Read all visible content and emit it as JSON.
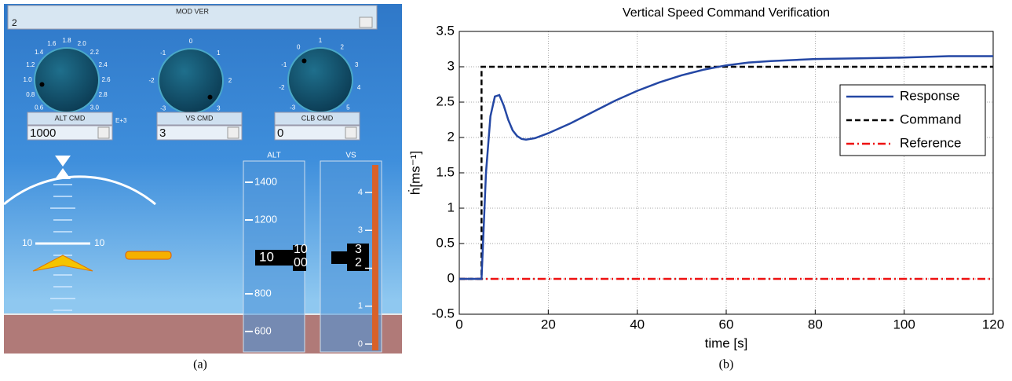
{
  "panel": {
    "mod_ver": {
      "label": "MOD VER",
      "value": "2"
    },
    "knobs": [
      {
        "label": "ALT CMD",
        "value": "1000",
        "scale": [
          "0.6",
          "0.8",
          "1.0",
          "1.2",
          "1.4",
          "1.6",
          "1.8",
          "2.0",
          "2.2",
          "2.4",
          "2.6",
          "2.8",
          "3.0"
        ],
        "exponent": "E+3"
      },
      {
        "label": "VS CMD",
        "value": "3",
        "scale": [
          "-3",
          "-2",
          "-1",
          "0",
          "1",
          "2",
          "3"
        ]
      },
      {
        "label": "CLB CMD",
        "value": "0",
        "scale": [
          "-3",
          "-2",
          "-1",
          "0",
          "1",
          "2",
          "3",
          "4",
          "5"
        ]
      }
    ],
    "attitude": {
      "pitch_left": "10",
      "pitch_right": "10"
    },
    "alt_tape": {
      "title": "ALT",
      "labels": [
        "1400",
        "1200",
        "800",
        "600"
      ],
      "readout": "10",
      "drum": [
        "10",
        "00"
      ]
    },
    "vs_tape": {
      "title": "VS",
      "labels": [
        "4",
        "3",
        "2",
        "1",
        "0"
      ],
      "readout": [
        "3",
        "2"
      ]
    },
    "caption": "(a)"
  },
  "chart_data": {
    "type": "line",
    "title": "Vertical Speed Command Verification",
    "x_label": "time [s]",
    "y_label": "ḣ[ms⁻¹]",
    "xlim": [
      0,
      120
    ],
    "ylim": [
      -0.5,
      3.5
    ],
    "xticks": [
      0,
      20,
      40,
      60,
      80,
      100,
      120
    ],
    "yticks": [
      -0.5,
      0,
      0.5,
      1,
      1.5,
      2,
      2.5,
      3,
      3.5
    ],
    "grid": true,
    "legend": "upper right",
    "series": [
      {
        "name": "Response",
        "color": "#2447a4",
        "style": "solid",
        "x": [
          0,
          5,
          6,
          7,
          8,
          9,
          10,
          11,
          12,
          13,
          14,
          15,
          17,
          20,
          25,
          30,
          35,
          40,
          45,
          50,
          55,
          60,
          65,
          70,
          80,
          90,
          100,
          110,
          120
        ],
        "values": [
          0,
          0,
          1.5,
          2.3,
          2.58,
          2.6,
          2.45,
          2.25,
          2.1,
          2.02,
          1.98,
          1.97,
          1.99,
          2.06,
          2.2,
          2.36,
          2.52,
          2.66,
          2.78,
          2.88,
          2.96,
          3.02,
          3.06,
          3.08,
          3.11,
          3.12,
          3.13,
          3.15,
          3.15
        ]
      },
      {
        "name": "Command",
        "color": "#000000",
        "style": "dashed",
        "x": [
          0,
          5,
          5,
          120
        ],
        "values": [
          0,
          0,
          3,
          3
        ]
      },
      {
        "name": "Reference",
        "color": "#ee1111",
        "style": "dashdot",
        "x": [
          0,
          120
        ],
        "values": [
          0,
          0
        ]
      }
    ],
    "caption": "(b)"
  }
}
